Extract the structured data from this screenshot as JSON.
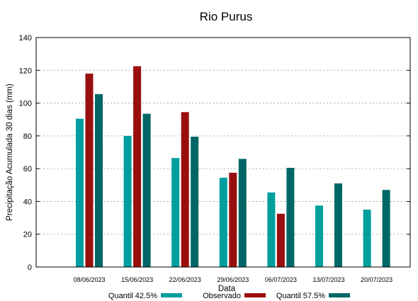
{
  "chart_data": {
    "type": "bar",
    "title": "Rio Purus",
    "xlabel": "Data",
    "ylabel": "Precipitação Acumulada 30 dias (mm)",
    "ylim": [
      0,
      140
    ],
    "yticks": [
      0,
      20,
      40,
      60,
      80,
      100,
      120,
      140
    ],
    "grid": "horizontal dashed",
    "legend_position": "bottom",
    "categories": [
      "08/06/2023",
      "15/06/2023",
      "22/06/2023",
      "29/06/2023",
      "06/07/2023",
      "13/07/2023",
      "20/07/2023"
    ],
    "series": [
      {
        "name": "Quantil 42.5%",
        "color": "#009e9e",
        "values": [
          90.5,
          80,
          66.5,
          54.5,
          45.5,
          37.5,
          35
        ]
      },
      {
        "name": "Observado",
        "color": "#990f0f",
        "values": [
          118,
          122.5,
          94.5,
          57.5,
          32.5,
          null,
          null
        ]
      },
      {
        "name": "Quantil 57.5%",
        "color": "#006666",
        "values": [
          105.5,
          93.5,
          79.5,
          66,
          60.5,
          51,
          47
        ]
      }
    ]
  }
}
